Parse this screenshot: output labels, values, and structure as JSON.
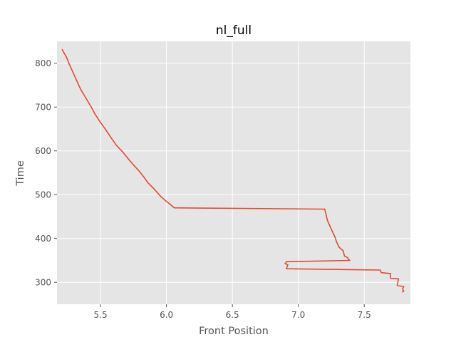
{
  "chart_data": {
    "type": "line",
    "title": "nl_full",
    "xlabel": "Front Position",
    "ylabel": "Time",
    "xlim": [
      5.17,
      7.85
    ],
    "ylim": [
      250,
      850
    ],
    "xticks": [
      5.5,
      6.0,
      6.5,
      7.0,
      7.5
    ],
    "xtick_labels": [
      "5.5",
      "6.0",
      "6.5",
      "7.0",
      "7.5"
    ],
    "yticks": [
      300,
      400,
      500,
      600,
      700,
      800
    ],
    "ytick_labels": [
      "300",
      "400",
      "500",
      "600",
      "700",
      "800"
    ],
    "grid": true,
    "colors": {
      "background": "#e5e5e5",
      "grid": "#ffffff",
      "line": "#e24a33",
      "text": "#555555"
    },
    "series": [
      {
        "values": [
          {
            "x": 7.79,
            "y": 278
          },
          {
            "x": 7.8,
            "y": 280
          },
          {
            "x": 7.79,
            "y": 285
          },
          {
            "x": 7.8,
            "y": 290
          },
          {
            "x": 7.75,
            "y": 293
          },
          {
            "x": 7.76,
            "y": 308
          },
          {
            "x": 7.7,
            "y": 309
          },
          {
            "x": 7.7,
            "y": 320
          },
          {
            "x": 7.63,
            "y": 322
          },
          {
            "x": 7.62,
            "y": 328
          },
          {
            "x": 6.91,
            "y": 331
          },
          {
            "x": 6.92,
            "y": 340
          },
          {
            "x": 6.9,
            "y": 343
          },
          {
            "x": 6.91,
            "y": 347
          },
          {
            "x": 7.39,
            "y": 350
          },
          {
            "x": 7.37,
            "y": 357
          },
          {
            "x": 7.35,
            "y": 360
          },
          {
            "x": 7.34,
            "y": 372
          },
          {
            "x": 7.31,
            "y": 380
          },
          {
            "x": 7.29,
            "y": 392
          },
          {
            "x": 7.28,
            "y": 402
          },
          {
            "x": 7.26,
            "y": 415
          },
          {
            "x": 7.24,
            "y": 428
          },
          {
            "x": 7.22,
            "y": 442
          },
          {
            "x": 7.21,
            "y": 455
          },
          {
            "x": 7.2,
            "y": 467
          },
          {
            "x": 6.06,
            "y": 470
          },
          {
            "x": 6.04,
            "y": 475
          },
          {
            "x": 6.02,
            "y": 480
          },
          {
            "x": 5.99,
            "y": 487
          },
          {
            "x": 5.96,
            "y": 495
          },
          {
            "x": 5.93,
            "y": 505
          },
          {
            "x": 5.9,
            "y": 515
          },
          {
            "x": 5.86,
            "y": 527
          },
          {
            "x": 5.83,
            "y": 540
          },
          {
            "x": 5.79,
            "y": 555
          },
          {
            "x": 5.75,
            "y": 568
          },
          {
            "x": 5.71,
            "y": 582
          },
          {
            "x": 5.67,
            "y": 597
          },
          {
            "x": 5.62,
            "y": 613
          },
          {
            "x": 5.58,
            "y": 630
          },
          {
            "x": 5.54,
            "y": 648
          },
          {
            "x": 5.5,
            "y": 665
          },
          {
            "x": 5.46,
            "y": 683
          },
          {
            "x": 5.43,
            "y": 700
          },
          {
            "x": 5.39,
            "y": 720
          },
          {
            "x": 5.35,
            "y": 740
          },
          {
            "x": 5.32,
            "y": 760
          },
          {
            "x": 5.29,
            "y": 780
          },
          {
            "x": 5.26,
            "y": 800
          },
          {
            "x": 5.24,
            "y": 815
          },
          {
            "x": 5.22,
            "y": 825
          },
          {
            "x": 5.21,
            "y": 831
          }
        ]
      }
    ]
  }
}
